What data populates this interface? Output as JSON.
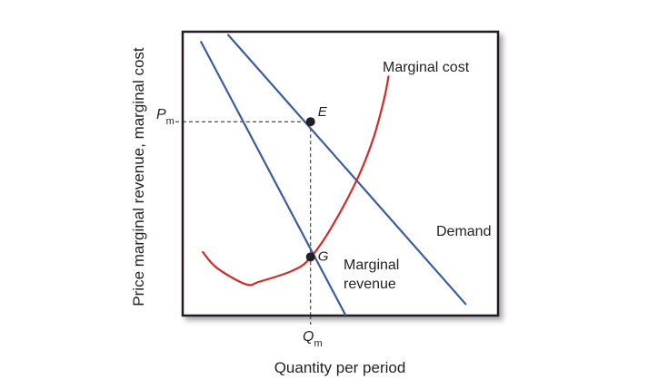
{
  "chart_data": {
    "type": "line",
    "title": "",
    "xlabel": "Quantity per period",
    "ylabel": "Price marginal revenue, marginal cost",
    "grid": false,
    "legend": "none",
    "tick_labels": {
      "x": {
        "main": "Q",
        "sub": "m"
      },
      "y": {
        "main": "P",
        "sub": "m"
      }
    },
    "series": [
      {
        "name": "Demand",
        "color": "#3b5ba5",
        "points": [
          [
            0.52,
            10.48
          ],
          [
            3.23,
            0.43
          ]
        ]
      },
      {
        "name": "Marginal revenue",
        "color": "#3b5ba5",
        "points": [
          [
            0.21,
            10.22
          ],
          [
            1.87,
            -0.05
          ]
        ]
      },
      {
        "name": "Marginal cost",
        "color": "#d42a2a",
        "points": [
          [
            0.23,
            2.37
          ],
          [
            0.39,
            1.78
          ],
          [
            0.72,
            1.17
          ],
          [
            0.88,
            1.27
          ],
          [
            1.25,
            1.67
          ],
          [
            1.45,
            2.13
          ],
          [
            1.7,
            3.3
          ],
          [
            2.0,
            5.15
          ],
          [
            2.18,
            6.65
          ],
          [
            2.3,
            8.1
          ],
          [
            2.35,
            8.93
          ]
        ]
      }
    ],
    "points": [
      {
        "label": "E",
        "x": 1.46,
        "y": 7.24
      },
      {
        "label": "G",
        "x": 1.46,
        "y": 2.19
      }
    ],
    "guides": {
      "Pm": 7.24,
      "Qm": 1.46
    },
    "xlim": [
      0,
      3.6
    ],
    "ylim": [
      0,
      10.6
    ],
    "annotations": {
      "marginal_cost": "Marginal cost",
      "demand": "Demand",
      "marginal_revenue_line1": "Marginal",
      "marginal_revenue_line2": "revenue"
    },
    "colors": {
      "blue": "#3b5ba5",
      "red": "#d42a2a",
      "dots": "#231f20",
      "frame": "#231f20"
    }
  }
}
